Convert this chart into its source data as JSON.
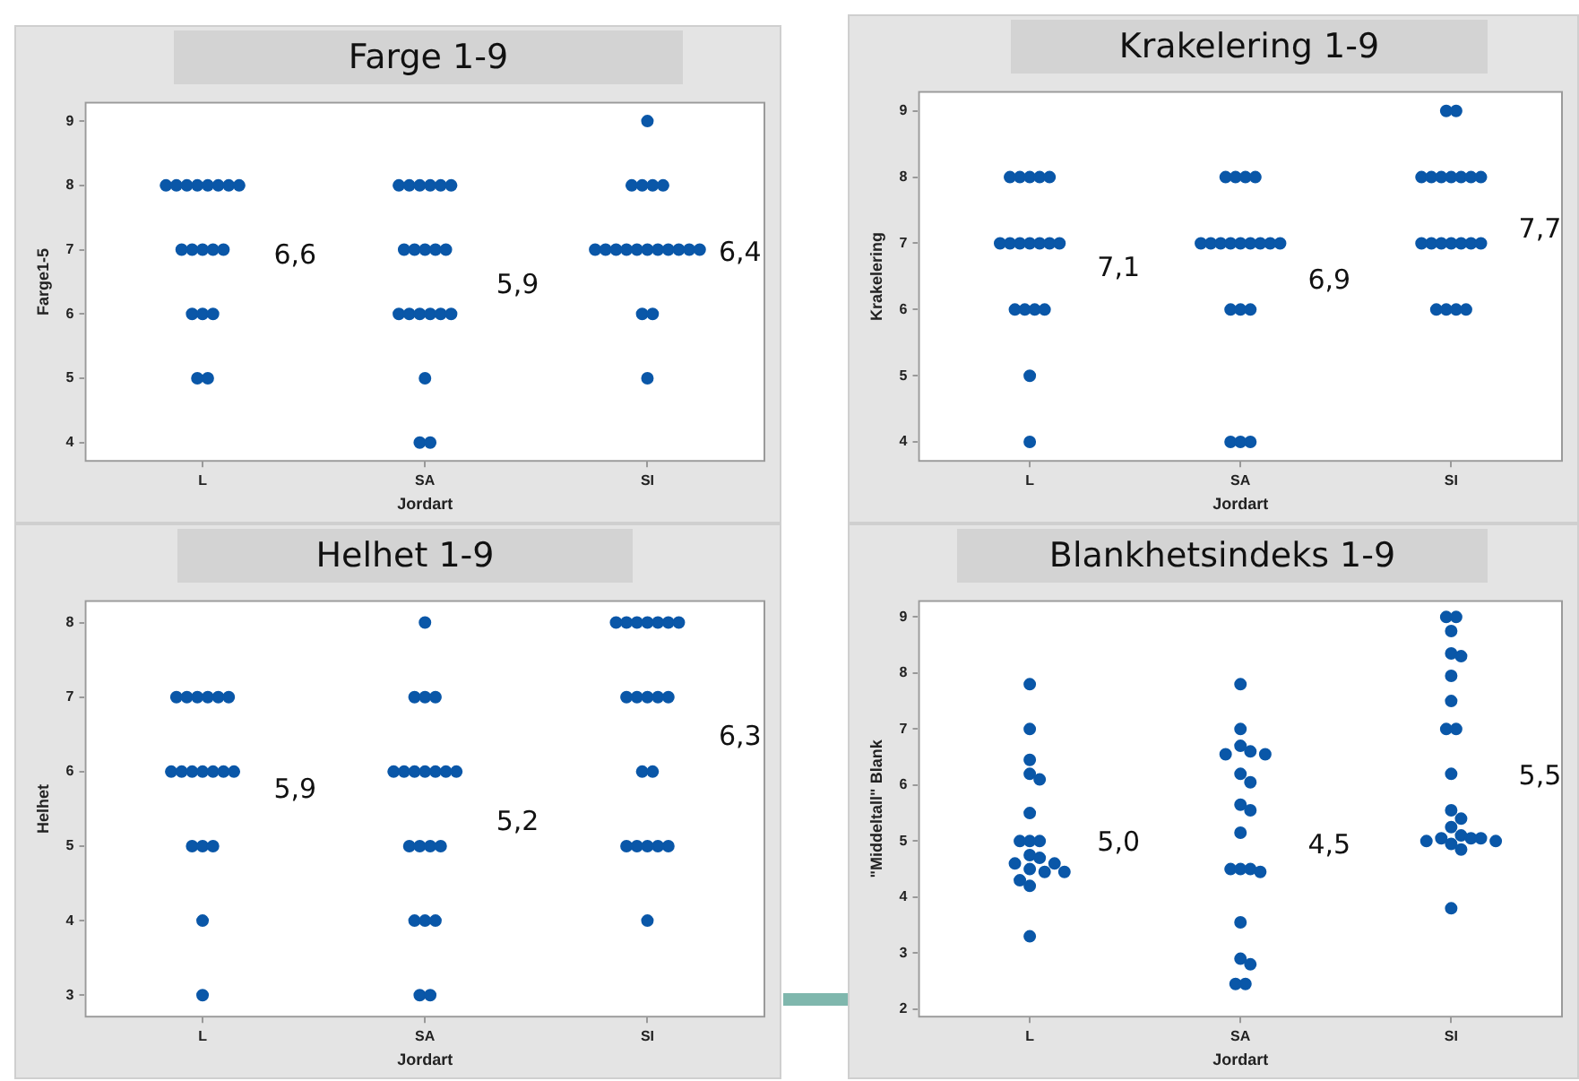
{
  "chart_data": [
    {
      "type": "scatter",
      "title": "Farge 1-9",
      "xlabel": "Jordart",
      "ylabel": "Farge1-5",
      "categories": [
        "L",
        "SA",
        "SI"
      ],
      "ylim": [
        3.7,
        9.3
      ],
      "yticks": [
        4,
        5,
        6,
        7,
        8,
        9
      ],
      "grid": false,
      "legend": false,
      "marker": "circle",
      "series": [
        {
          "color": "#0a57a8",
          "x": [
            "L",
            "L",
            "L",
            "L",
            "L",
            "L",
            "L",
            "L",
            "L",
            "L",
            "L",
            "L",
            "L",
            "L",
            "L",
            "L",
            "L",
            "L",
            "SA",
            "SA",
            "SA",
            "SA",
            "SA",
            "SA",
            "SA",
            "SA",
            "SA",
            "SA",
            "SA",
            "SA",
            "SA",
            "SA",
            "SA",
            "SA",
            "SA",
            "SA",
            "SA",
            "SA",
            "SI",
            "SI",
            "SI",
            "SI",
            "SI",
            "SI",
            "SI",
            "SI",
            "SI",
            "SI",
            "SI",
            "SI",
            "SI",
            "SI",
            "SI",
            "SI",
            "SI",
            "SI",
            "SI"
          ],
          "values": [
            8,
            8,
            8,
            8,
            8,
            8,
            8,
            8,
            7,
            7,
            7,
            7,
            7,
            6,
            6,
            6,
            5,
            5,
            8,
            8,
            8,
            8,
            8,
            8,
            7,
            7,
            7,
            7,
            7,
            6,
            6,
            6,
            6,
            6,
            6,
            5,
            4,
            4,
            9,
            8,
            8,
            8,
            8,
            7,
            7,
            7,
            7,
            7,
            7,
            7,
            7,
            7,
            7,
            7,
            6,
            6,
            5
          ]
        }
      ],
      "annotations": [
        "6,6",
        "5,9",
        "6,4"
      ]
    },
    {
      "type": "scatter",
      "title": "Krakelering 1-9",
      "xlabel": "Jordart",
      "ylabel": "Krakelering",
      "categories": [
        "L",
        "SA",
        "SI"
      ],
      "ylim": [
        3.7,
        9.3
      ],
      "yticks": [
        4,
        5,
        6,
        7,
        8,
        9
      ],
      "grid": false,
      "legend": false,
      "marker": "circle",
      "series": [
        {
          "color": "#0a57a8",
          "x": [
            "L",
            "L",
            "L",
            "L",
            "L",
            "L",
            "L",
            "L",
            "L",
            "L",
            "L",
            "L",
            "L",
            "L",
            "L",
            "L",
            "L",
            "L",
            "SA",
            "SA",
            "SA",
            "SA",
            "SA",
            "SA",
            "SA",
            "SA",
            "SA",
            "SA",
            "SA",
            "SA",
            "SA",
            "SA",
            "SA",
            "SA",
            "SA",
            "SA",
            "SA",
            "SI",
            "SI",
            "SI",
            "SI",
            "SI",
            "SI",
            "SI",
            "SI",
            "SI",
            "SI",
            "SI",
            "SI",
            "SI",
            "SI",
            "SI",
            "SI",
            "SI",
            "SI",
            "SI",
            "SI"
          ],
          "values": [
            8,
            8,
            8,
            8,
            8,
            7,
            7,
            7,
            7,
            7,
            7,
            7,
            6,
            6,
            6,
            6,
            5,
            4,
            8,
            8,
            8,
            8,
            7,
            7,
            7,
            7,
            7,
            7,
            7,
            7,
            7,
            6,
            6,
            6,
            4,
            4,
            4,
            9,
            9,
            8,
            8,
            8,
            8,
            8,
            8,
            8,
            7,
            7,
            7,
            7,
            7,
            7,
            7,
            6,
            6,
            6,
            6
          ]
        }
      ],
      "annotations": [
        "7,1",
        "6,9",
        "7,7"
      ]
    },
    {
      "type": "scatter",
      "title": "Helhet 1-9",
      "xlabel": "Jordart",
      "ylabel": "Helhet",
      "categories": [
        "L",
        "SA",
        "SI"
      ],
      "ylim": [
        2.7,
        8.3
      ],
      "yticks": [
        3,
        4,
        5,
        6,
        7,
        8
      ],
      "grid": false,
      "legend": false,
      "marker": "circle",
      "series": [
        {
          "color": "#0a57a8",
          "x": [
            "L",
            "L",
            "L",
            "L",
            "L",
            "L",
            "L",
            "L",
            "L",
            "L",
            "L",
            "L",
            "L",
            "L",
            "L",
            "L",
            "L",
            "L",
            "SA",
            "SA",
            "SA",
            "SA",
            "SA",
            "SA",
            "SA",
            "SA",
            "SA",
            "SA",
            "SA",
            "SA",
            "SA",
            "SA",
            "SA",
            "SA",
            "SA",
            "SA",
            "SA",
            "SA",
            "SI",
            "SI",
            "SI",
            "SI",
            "SI",
            "SI",
            "SI",
            "SI",
            "SI",
            "SI",
            "SI",
            "SI",
            "SI",
            "SI",
            "SI",
            "SI",
            "SI",
            "SI",
            "SI",
            "SI"
          ],
          "values": [
            7,
            7,
            7,
            7,
            7,
            7,
            6,
            6,
            6,
            6,
            6,
            6,
            6,
            5,
            5,
            5,
            4,
            3,
            8,
            7,
            7,
            7,
            6,
            6,
            6,
            6,
            6,
            6,
            6,
            5,
            5,
            5,
            5,
            4,
            4,
            4,
            3,
            3,
            8,
            8,
            8,
            8,
            8,
            8,
            8,
            7,
            7,
            7,
            7,
            7,
            6,
            6,
            5,
            5,
            5,
            5,
            5,
            4
          ]
        }
      ],
      "annotations": [
        "5,9",
        "5,2",
        "6,3"
      ]
    },
    {
      "type": "scatter",
      "title": "Blankhetsindeks 1-9",
      "xlabel": "Jordart",
      "ylabel": "\"Middeltall\" Blank",
      "categories": [
        "L",
        "SA",
        "SI"
      ],
      "ylim": [
        1.85,
        9.3
      ],
      "yticks": [
        2,
        3,
        4,
        5,
        6,
        7,
        8,
        9
      ],
      "grid": false,
      "legend": false,
      "marker": "circle",
      "series": [
        {
          "color": "#0a57a8",
          "x": [
            "L",
            "L",
            "L",
            "L",
            "L",
            "L",
            "L",
            "L",
            "L",
            "L",
            "L",
            "L",
            "L",
            "L",
            "L",
            "L",
            "L",
            "L",
            "L",
            "SA",
            "SA",
            "SA",
            "SA",
            "SA",
            "SA",
            "SA",
            "SA",
            "SA",
            "SA",
            "SA",
            "SA",
            "SA",
            "SA",
            "SA",
            "SA",
            "SA",
            "SA",
            "SA",
            "SA",
            "SI",
            "SI",
            "SI",
            "SI",
            "SI",
            "SI",
            "SI",
            "SI",
            "SI",
            "SI",
            "SI",
            "SI",
            "SI",
            "SI",
            "SI",
            "SI",
            "SI",
            "SI",
            "SI",
            "SI",
            "SI",
            "SI"
          ],
          "values": [
            7.8,
            7.0,
            6.45,
            6.2,
            6.1,
            5.5,
            5.0,
            5.0,
            5.0,
            4.75,
            4.7,
            4.6,
            4.6,
            4.5,
            4.45,
            4.45,
            4.3,
            4.2,
            3.3,
            7.8,
            7.0,
            6.7,
            6.6,
            6.55,
            6.55,
            6.2,
            6.05,
            5.65,
            5.55,
            5.15,
            4.5,
            4.5,
            4.5,
            4.45,
            3.55,
            2.9,
            2.8,
            2.45,
            2.45,
            9.0,
            9.0,
            8.75,
            8.35,
            8.3,
            7.95,
            7.5,
            7.0,
            7.0,
            6.2,
            5.55,
            5.4,
            5.25,
            5.1,
            5.05,
            5.05,
            5.05,
            5.0,
            5.0,
            4.95,
            4.85,
            3.8
          ]
        }
      ],
      "annotations": [
        "5,0",
        "4,5",
        "5,5"
      ]
    }
  ]
}
